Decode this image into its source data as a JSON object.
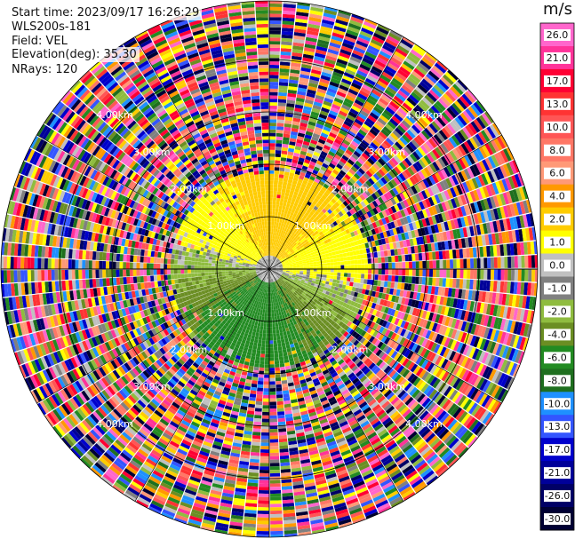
{
  "header": {
    "start_time": "Start time: 2023/09/17 16:26:29",
    "instrument": "WLS200s-181",
    "field": "Field: VEL",
    "elevation": "Elevation(deg): 35.30",
    "nrays": "NRays: 120"
  },
  "colorbar": {
    "unit": "m/s",
    "ticks": [
      "26.0",
      "21.0",
      "17.0",
      "13.0",
      "10.0",
      "8.0",
      "6.0",
      "4.0",
      "2.0",
      "1.0",
      "0.0",
      "-1.0",
      "-2.0",
      "-4.0",
      "-6.0",
      "-8.0",
      "-10.0",
      "-13.0",
      "-17.0",
      "-21.0",
      "-26.0",
      "-30.0"
    ],
    "colors": [
      "#ff66cc",
      "#ff3399",
      "#ff0033",
      "#ff3333",
      "#ff5555",
      "#ff7766",
      "#ff9977",
      "#ff9900",
      "#ffcc00",
      "#ffff00",
      "#c0c0c0",
      "#808080",
      "#8fbc3f",
      "#6b8e23",
      "#228b22",
      "#1f6f1f",
      "#1e90ff",
      "#3355ff",
      "#0000cc",
      "#000099",
      "#000066",
      "#000033"
    ]
  },
  "range_labels": [
    "1.00km",
    "2.00km",
    "3.00km",
    "4.00km"
  ],
  "chart_data": {
    "type": "heatmap",
    "title": "",
    "projection": "polar PPI",
    "field": "VEL",
    "rays": 120,
    "range_rings_km": [
      1.0,
      2.0,
      3.0,
      4.0
    ],
    "unit": "m/s",
    "clean_region": {
      "north_sector_value_ms": "1.0 to 4.0",
      "south_sector_value_ms": "-1.0 to -6.0"
    }
  }
}
